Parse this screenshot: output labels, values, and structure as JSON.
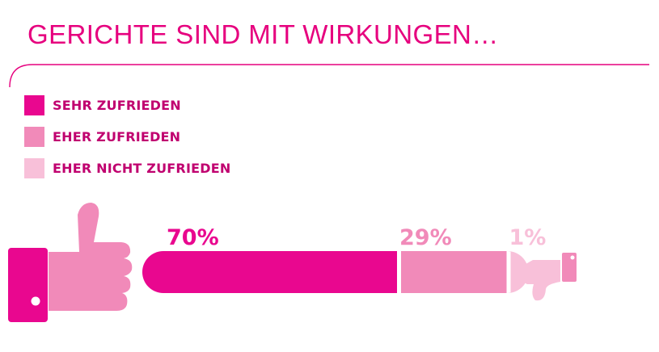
{
  "title": "GERICHTE SIND MIT WIRKUNGEN…",
  "colors": {
    "accent": "#e6007e",
    "strong": "#e9078f",
    "medium": "#f18ab9",
    "light": "#f8c0d9",
    "text": "#c0006f"
  },
  "icons": {
    "left": "thumbs-up-icon",
    "right": "thumbs-down-icon"
  },
  "chart_data": {
    "type": "bar",
    "orientation": "horizontal-stacked",
    "total": 100,
    "series": [
      {
        "name": "SEHR ZUFRIEDEN",
        "value": 70,
        "label": "70%",
        "color": "#e9078f"
      },
      {
        "name": "EHER ZUFRIEDEN",
        "value": 29,
        "label": "29%",
        "color": "#f18ab9"
      },
      {
        "name": "EHER NICHT ZUFRIEDEN",
        "value": 1,
        "label": "1%",
        "color": "#f8c0d9"
      }
    ],
    "legend": "top-left"
  }
}
